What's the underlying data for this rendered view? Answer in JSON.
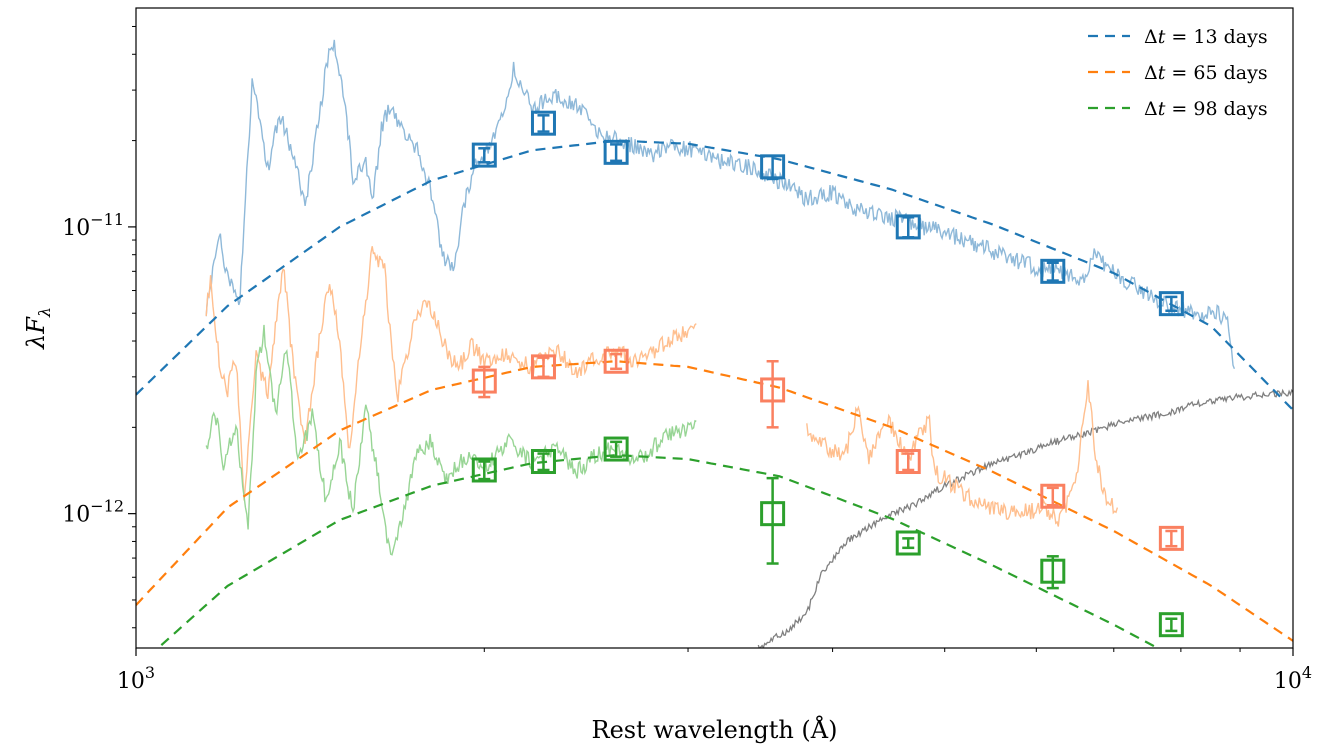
{
  "chart_data": {
    "type": "line",
    "xlabel": "Rest wavelength (Å)",
    "ylabel": "λF",
    "ylabel_sub": "λ",
    "xscale": "log",
    "yscale": "log",
    "xlim": [
      1000,
      10000
    ],
    "ylim": [
      3.4e-13,
      5.8e-11
    ],
    "legend_position": "top-right",
    "x_ticks": [
      {
        "value": 1000,
        "base": "10",
        "exp": "3"
      },
      {
        "value": 10000,
        "base": "10",
        "exp": "4"
      }
    ],
    "y_ticks": [
      {
        "value": 1e-12,
        "base": "10",
        "exp": "−12"
      },
      {
        "value": 1e-11,
        "base": "10",
        "exp": "−11"
      }
    ],
    "series": [
      {
        "name": "Δt = 13 days",
        "legend_prefix": "Δ",
        "legend_var": "t",
        "legend_suffix": " = 13 days",
        "color": "#1f77b4",
        "spectrum_color": "#8fb9d9",
        "model": [
          [
            1000,
            2.6e-12
          ],
          [
            1200,
            5.3e-12
          ],
          [
            1500,
            1e-11
          ],
          [
            1800,
            1.45e-11
          ],
          [
            2200,
            1.85e-11
          ],
          [
            2600,
            2e-11
          ],
          [
            3000,
            1.95e-11
          ],
          [
            3600,
            1.72e-11
          ],
          [
            4500,
            1.35e-11
          ],
          [
            5500,
            1.02e-11
          ],
          [
            7000,
            6.9e-12
          ],
          [
            8500,
            4.5e-12
          ],
          [
            10000,
            2.3e-12
          ]
        ],
        "points": [
          {
            "x": 2000,
            "y": 1.78e-11,
            "err": 1e-12
          },
          {
            "x": 2250,
            "y": 2.3e-11,
            "err": 1.5e-12
          },
          {
            "x": 2600,
            "y": 1.82e-11,
            "err": 1.2e-12
          },
          {
            "x": 3550,
            "y": 1.62e-11,
            "err": 1.5e-12
          },
          {
            "x": 4650,
            "y": 1e-11,
            "err": 8e-13
          },
          {
            "x": 6200,
            "y": 7e-12,
            "err": 5e-13
          },
          {
            "x": 7850,
            "y": 5.4e-12,
            "err": 3e-13
          }
        ],
        "spectrum": [
          [
            1150,
            5.1e-12
          ],
          [
            1180,
            9.4e-12
          ],
          [
            1200,
            6.8e-12
          ],
          [
            1230,
            5.5e-12
          ],
          [
            1240,
            1.05e-11
          ],
          [
            1260,
            3.2e-11
          ],
          [
            1280,
            2.4e-11
          ],
          [
            1300,
            1.6e-11
          ],
          [
            1330,
            2.5e-11
          ],
          [
            1360,
            1.9e-11
          ],
          [
            1400,
            1.2e-11
          ],
          [
            1440,
            2.4e-11
          ],
          [
            1460,
            3.6e-11
          ],
          [
            1480,
            4.4e-11
          ],
          [
            1510,
            3e-11
          ],
          [
            1540,
            1.5e-11
          ],
          [
            1580,
            1.7e-11
          ],
          [
            1600,
            1.2e-11
          ],
          [
            1630,
            2.2e-11
          ],
          [
            1660,
            2.7e-11
          ],
          [
            1700,
            2.1e-11
          ],
          [
            1750,
            1.9e-11
          ],
          [
            1800,
            1.3e-11
          ],
          [
            1840,
            8e-12
          ],
          [
            1880,
            7e-12
          ],
          [
            1920,
            1.2e-11
          ],
          [
            1960,
            1.6e-11
          ],
          [
            2000,
            1.8e-11
          ],
          [
            2080,
            2.5e-11
          ],
          [
            2120,
            3.6e-11
          ],
          [
            2160,
            3.1e-11
          ],
          [
            2200,
            2.6e-11
          ],
          [
            2300,
            2.9e-11
          ],
          [
            2400,
            2.7e-11
          ],
          [
            2500,
            2.2e-11
          ],
          [
            2600,
            2e-11
          ],
          [
            2700,
            1.9e-11
          ],
          [
            2800,
            1.8e-11
          ],
          [
            2900,
            1.9e-11
          ],
          [
            3050,
            1.85e-11
          ],
          [
            3200,
            1.7e-11
          ],
          [
            3400,
            1.6e-11
          ],
          [
            3650,
            1.4e-11
          ],
          [
            3800,
            1.25e-11
          ],
          [
            4000,
            1.32e-11
          ],
          [
            4200,
            1.15e-11
          ],
          [
            4500,
            1.08e-11
          ],
          [
            4800,
            1e-11
          ],
          [
            5000,
            9.5e-12
          ],
          [
            5300,
            8.8e-12
          ],
          [
            5600,
            7.9e-12
          ],
          [
            6000,
            7.2e-12
          ],
          [
            6300,
            7e-12
          ],
          [
            6600,
            6.6e-12
          ],
          [
            6750,
            8.2e-12
          ],
          [
            6900,
            7.2e-12
          ],
          [
            7200,
            6.4e-12
          ],
          [
            7500,
            5.8e-12
          ],
          [
            7800,
            5.3e-12
          ],
          [
            8200,
            5e-12
          ],
          [
            8600,
            5e-12
          ],
          [
            8800,
            4.6e-12
          ],
          [
            8900,
            3.2e-12
          ]
        ]
      },
      {
        "name": "Δt = 65 days",
        "legend_prefix": "Δ",
        "legend_var": "t",
        "legend_suffix": " = 65 days",
        "color": "#ff7f0e",
        "point_color": "#fa8060",
        "spectrum_color": "#ffbf8f",
        "model": [
          [
            1000,
            4.8e-13
          ],
          [
            1200,
            1.05e-12
          ],
          [
            1500,
            1.95e-12
          ],
          [
            1800,
            2.7e-12
          ],
          [
            2200,
            3.25e-12
          ],
          [
            2600,
            3.4e-12
          ],
          [
            3000,
            3.25e-12
          ],
          [
            3600,
            2.75e-12
          ],
          [
            4500,
            2e-12
          ],
          [
            5500,
            1.4e-12
          ],
          [
            7000,
            8.7e-13
          ],
          [
            8500,
            5.6e-13
          ],
          [
            10000,
            3.6e-13
          ]
        ],
        "points": [
          {
            "x": 2000,
            "y": 2.9e-12,
            "err": 3.5e-13
          },
          {
            "x": 2250,
            "y": 3.25e-12,
            "err": 2.5e-13
          },
          {
            "x": 2600,
            "y": 3.4e-12,
            "err": 2e-13
          },
          {
            "x": 3550,
            "y": 2.7e-12,
            "err": 7e-13
          },
          {
            "x": 4650,
            "y": 1.52e-12,
            "err": 1e-13
          },
          {
            "x": 6200,
            "y": 1.15e-12,
            "err": 8e-14
          },
          {
            "x": 7850,
            "y": 8.2e-13,
            "err": 5e-14
          }
        ],
        "spectrum_segments": [
          [
            [
              1150,
              5e-12
            ],
            [
              1160,
              6.5e-12
            ],
            [
              1180,
              3.4e-12
            ],
            [
              1200,
              2.7e-12
            ],
            [
              1220,
              3.5e-12
            ],
            [
              1240,
              1.1e-12
            ],
            [
              1270,
              3.5e-12
            ],
            [
              1300,
              2.6e-12
            ],
            [
              1340,
              7.5e-12
            ],
            [
              1370,
              3e-12
            ],
            [
              1400,
              1.8e-12
            ],
            [
              1440,
              4e-12
            ],
            [
              1470,
              6.6e-12
            ],
            [
              1500,
              4e-12
            ],
            [
              1530,
              1.6e-12
            ],
            [
              1560,
              3.6e-12
            ],
            [
              1600,
              8.3e-12
            ],
            [
              1640,
              7e-12
            ],
            [
              1680,
              2.5e-12
            ],
            [
              1730,
              4.2e-12
            ],
            [
              1780,
              5.6e-12
            ],
            [
              1820,
              4.6e-12
            ],
            [
              1860,
              3.6e-12
            ],
            [
              1900,
              3.2e-12
            ],
            [
              1950,
              3.9e-12
            ],
            [
              2000,
              3.4e-12
            ],
            [
              2100,
              3.6e-12
            ],
            [
              2200,
              3.2e-12
            ],
            [
              2300,
              3.8e-12
            ],
            [
              2400,
              3.1e-12
            ],
            [
              2500,
              3.5e-12
            ],
            [
              2600,
              3.7e-12
            ],
            [
              2700,
              3.4e-12
            ],
            [
              2800,
              3.7e-12
            ],
            [
              2900,
              4.1e-12
            ],
            [
              3000,
              4.3e-12
            ],
            [
              3050,
              4.6e-12
            ]
          ],
          [
            [
              3800,
              1.95e-12
            ],
            [
              3950,
              1.7e-12
            ],
            [
              4100,
              1.6e-12
            ],
            [
              4200,
              2.3e-12
            ],
            [
              4300,
              1.55e-12
            ],
            [
              4450,
              2.15e-12
            ],
            [
              4650,
              1.55e-12
            ],
            [
              4750,
              1.9e-12
            ],
            [
              4850,
              2.1e-12
            ],
            [
              4900,
              1.4e-12
            ],
            [
              5100,
              1.25e-12
            ],
            [
              5300,
              1.1e-12
            ],
            [
              5500,
              1.05e-12
            ],
            [
              5800,
              1e-12
            ],
            [
              6100,
              1.05e-12
            ],
            [
              6300,
              9.5e-13
            ],
            [
              6500,
              1.35e-12
            ],
            [
              6650,
              2.8e-12
            ],
            [
              6750,
              1.6e-12
            ],
            [
              6900,
              1.1e-12
            ],
            [
              7050,
              1.05e-12
            ]
          ]
        ]
      },
      {
        "name": "Δt = 98 days",
        "legend_prefix": "Δ",
        "legend_var": "t",
        "legend_suffix": " = 98 days",
        "color": "#2ca02c",
        "spectrum_color": "#98d595",
        "model": [
          [
            1000,
            2.9e-13
          ],
          [
            1200,
            5.6e-13
          ],
          [
            1500,
            9.5e-13
          ],
          [
            1800,
            1.25e-12
          ],
          [
            2200,
            1.5e-12
          ],
          [
            2600,
            1.6e-12
          ],
          [
            3000,
            1.55e-12
          ],
          [
            3600,
            1.35e-12
          ],
          [
            4500,
            9.6e-13
          ],
          [
            5500,
            6.6e-13
          ],
          [
            7000,
            4.1e-13
          ],
          [
            8500,
            2.7e-13
          ],
          [
            10000,
            1.75e-13
          ]
        ],
        "points": [
          {
            "x": 2000,
            "y": 1.42e-12,
            "err": 1e-13
          },
          {
            "x": 2250,
            "y": 1.52e-12,
            "err": 1e-13
          },
          {
            "x": 2600,
            "y": 1.68e-12,
            "err": 1e-13
          },
          {
            "x": 3550,
            "y": 1e-12,
            "err": 3.3e-13
          },
          {
            "x": 4650,
            "y": 7.9e-13,
            "err": 3e-14
          },
          {
            "x": 6200,
            "y": 6.3e-13,
            "err": 8e-14
          },
          {
            "x": 7850,
            "y": 4.1e-13,
            "err": 2e-14
          }
        ],
        "spectrum": [
          [
            1150,
            1.7e-12
          ],
          [
            1170,
            2.3e-12
          ],
          [
            1190,
            1.5e-12
          ],
          [
            1220,
            2e-12
          ],
          [
            1250,
            9e-13
          ],
          [
            1270,
            3e-12
          ],
          [
            1290,
            4.4e-12
          ],
          [
            1320,
            2.2e-12
          ],
          [
            1350,
            3.8e-12
          ],
          [
            1380,
            1.5e-12
          ],
          [
            1420,
            2.2e-12
          ],
          [
            1460,
            1.1e-12
          ],
          [
            1500,
            1.8e-12
          ],
          [
            1540,
            1e-12
          ],
          [
            1580,
            2.4e-12
          ],
          [
            1620,
            1.3e-12
          ],
          [
            1660,
            7e-13
          ],
          [
            1700,
            1e-12
          ],
          [
            1750,
            1.6e-12
          ],
          [
            1800,
            1.8e-12
          ],
          [
            1850,
            1.3e-12
          ],
          [
            1900,
            1.5e-12
          ],
          [
            1950,
            1.6e-12
          ],
          [
            2000,
            1.45e-12
          ],
          [
            2100,
            1.8e-12
          ],
          [
            2200,
            1.5e-12
          ],
          [
            2300,
            1.7e-12
          ],
          [
            2400,
            1.4e-12
          ],
          [
            2500,
            1.6e-12
          ],
          [
            2600,
            1.7e-12
          ],
          [
            2700,
            1.5e-12
          ],
          [
            2800,
            1.7e-12
          ],
          [
            2900,
            1.9e-12
          ],
          [
            3000,
            2e-12
          ],
          [
            3050,
            2.1e-12
          ]
        ]
      }
    ],
    "template": {
      "color": "#808080",
      "points": [
        [
          3450,
          3.4e-13
        ],
        [
          3650,
          3.9e-13
        ],
        [
          3800,
          4.5e-13
        ],
        [
          3900,
          6e-13
        ],
        [
          4000,
          6.9e-13
        ],
        [
          4100,
          7.9e-13
        ],
        [
          4300,
          9e-13
        ],
        [
          4500,
          1e-12
        ],
        [
          4700,
          1.07e-12
        ],
        [
          4900,
          1.2e-12
        ],
        [
          5200,
          1.35e-12
        ],
        [
          5500,
          1.5e-12
        ],
        [
          5800,
          1.6e-12
        ],
        [
          6100,
          1.73e-12
        ],
        [
          6400,
          1.85e-12
        ],
        [
          6700,
          1.93e-12
        ],
        [
          7000,
          2.05e-12
        ],
        [
          7400,
          2.15e-12
        ],
        [
          7800,
          2.25e-12
        ],
        [
          8200,
          2.4e-12
        ],
        [
          8600,
          2.5e-12
        ],
        [
          9000,
          2.55e-12
        ],
        [
          9500,
          2.6e-12
        ],
        [
          10000,
          2.65e-12
        ]
      ]
    }
  }
}
